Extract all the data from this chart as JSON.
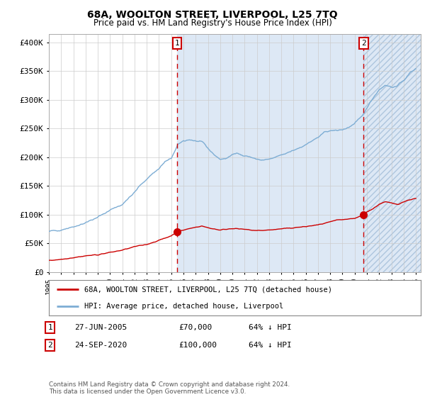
{
  "title1": "68A, WOOLTON STREET, LIVERPOOL, L25 7TQ",
  "title2": "Price paid vs. HM Land Registry's House Price Index (HPI)",
  "ylabel_ticks": [
    "£0",
    "£50K",
    "£100K",
    "£150K",
    "£200K",
    "£250K",
    "£300K",
    "£350K",
    "£400K"
  ],
  "ylabel_values": [
    0,
    50000,
    100000,
    150000,
    200000,
    250000,
    300000,
    350000,
    400000
  ],
  "ylim": [
    0,
    415000
  ],
  "xlim_start": 1995.0,
  "xlim_end": 2025.4,
  "marker1_x": 2005.49,
  "marker1_y": 70000,
  "marker2_x": 2020.73,
  "marker2_y": 100000,
  "vline1_x": 2005.49,
  "vline2_x": 2020.73,
  "line1_color": "#cc0000",
  "line2_color": "#7dadd4",
  "legend_label1": "68A, WOOLTON STREET, LIVERPOOL, L25 7TQ (detached house)",
  "legend_label2": "HPI: Average price, detached house, Liverpool",
  "table_row1": [
    "1",
    "27-JUN-2005",
    "£70,000",
    "64% ↓ HPI"
  ],
  "table_row2": [
    "2",
    "24-SEP-2020",
    "£100,000",
    "64% ↓ HPI"
  ],
  "footnote": "Contains HM Land Registry data © Crown copyright and database right 2024.\nThis data is licensed under the Open Government Licence v3.0.",
  "hpi_fill_color": "#dde8f5",
  "grid_color": "#cccccc",
  "hpi_keypoints_x": [
    1995.0,
    1996.0,
    1997.0,
    1998.0,
    1999.0,
    2000.0,
    2001.0,
    2002.0,
    2002.5,
    2003.0,
    2003.5,
    2004.0,
    2004.5,
    2005.0,
    2005.5,
    2006.0,
    2006.5,
    2007.0,
    2007.5,
    2008.0,
    2008.5,
    2009.0,
    2009.5,
    2010.0,
    2010.5,
    2011.0,
    2011.5,
    2012.0,
    2012.5,
    2013.0,
    2013.5,
    2014.0,
    2014.5,
    2015.0,
    2015.5,
    2016.0,
    2016.5,
    2017.0,
    2017.5,
    2018.0,
    2018.5,
    2019.0,
    2019.5,
    2020.0,
    2020.5,
    2021.0,
    2021.5,
    2022.0,
    2022.5,
    2023.0,
    2023.5,
    2024.0,
    2024.5,
    2025.0
  ],
  "hpi_keypoints_y": [
    70000,
    74000,
    79000,
    86000,
    95000,
    108000,
    118000,
    138000,
    152000,
    162000,
    172000,
    180000,
    192000,
    197000,
    220000,
    228000,
    231000,
    228000,
    226000,
    215000,
    205000,
    196000,
    198000,
    204000,
    207000,
    203000,
    200000,
    196000,
    195000,
    196000,
    199000,
    203000,
    207000,
    212000,
    217000,
    222000,
    228000,
    234000,
    242000,
    247000,
    246000,
    248000,
    252000,
    258000,
    268000,
    286000,
    304000,
    318000,
    326000,
    322000,
    324000,
    334000,
    346000,
    355000
  ],
  "red_keypoints_x": [
    1995.0,
    1996.0,
    1997.0,
    1998.0,
    1999.0,
    2000.0,
    2001.0,
    2002.0,
    2003.0,
    2004.0,
    2005.0,
    2005.49,
    2006.0,
    2007.0,
    2007.5,
    2008.0,
    2009.0,
    2010.0,
    2011.0,
    2012.0,
    2013.0,
    2014.0,
    2015.0,
    2016.0,
    2017.0,
    2018.0,
    2018.5,
    2019.0,
    2019.5,
    2020.0,
    2020.73,
    2021.0,
    2021.5,
    2022.0,
    2022.5,
    2023.0,
    2023.5,
    2024.0,
    2024.5,
    2025.0
  ],
  "red_keypoints_y": [
    20000,
    22000,
    25000,
    28000,
    30000,
    34000,
    38000,
    44000,
    48000,
    55000,
    63000,
    70000,
    73000,
    78000,
    80000,
    77000,
    73000,
    76000,
    74000,
    72000,
    73000,
    75000,
    77000,
    79000,
    82000,
    87000,
    90000,
    91000,
    92000,
    93000,
    100000,
    105000,
    110000,
    118000,
    122000,
    120000,
    118000,
    122000,
    126000,
    128000
  ]
}
